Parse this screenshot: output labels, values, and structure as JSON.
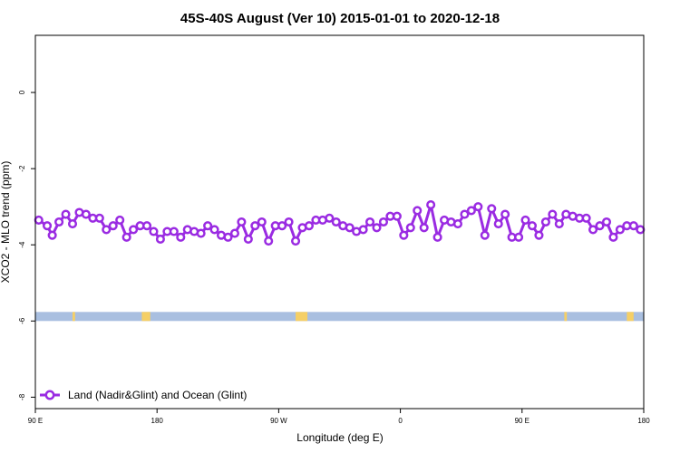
{
  "chart_data": {
    "type": "line",
    "title": "45S-40S August (Ver 10)   2015-01-01 to 2020-12-18",
    "xlabel": "Longitude (deg E)",
    "ylabel": "XCO2 - MLO trend (ppm)",
    "xlim": [
      90,
      450
    ],
    "ylim": [
      -8.3,
      1.5
    ],
    "x_ticks": [
      {
        "value": 90,
        "label": "90 E"
      },
      {
        "value": 162,
        "label": "180"
      },
      {
        "value": 234,
        "label": "90 W"
      },
      {
        "value": 306,
        "label": "0"
      },
      {
        "value": 378,
        "label": "90 E"
      },
      {
        "value": 450,
        "label": "180"
      }
    ],
    "y_ticks": [
      {
        "value": 0,
        "label": "0"
      },
      {
        "value": -2,
        "label": "-2"
      },
      {
        "value": -4,
        "label": "-4"
      },
      {
        "value": -6,
        "label": "-6"
      },
      {
        "value": -8,
        "label": "-8"
      }
    ],
    "legend": {
      "position": "bottom-left",
      "entries": [
        "Land (Nadir&Glint) and Ocean (Glint)"
      ]
    },
    "series": [
      {
        "name": "Land (Nadir&Glint) and Ocean (Glint)",
        "color": "#9a2be2",
        "x": [
          92,
          97,
          100,
          104,
          108,
          112,
          116,
          120,
          124,
          128,
          132,
          136,
          140,
          144,
          148,
          152,
          156,
          160,
          164,
          168,
          172,
          176,
          180,
          184,
          188,
          192,
          196,
          200,
          204,
          208,
          212,
          216,
          220,
          224,
          228,
          232,
          236,
          240,
          244,
          248,
          252,
          256,
          260,
          264,
          268,
          272,
          276,
          280,
          284,
          288,
          292,
          296,
          300,
          304,
          308,
          312,
          316,
          320,
          324,
          328,
          332,
          336,
          340,
          344,
          348,
          352,
          356,
          360,
          364,
          368,
          372,
          376,
          380,
          384,
          388,
          392,
          396,
          400,
          404,
          408,
          412,
          416,
          420,
          424,
          428,
          432,
          436,
          440,
          444,
          448
        ],
        "y": [
          -3.35,
          -3.5,
          -3.75,
          -3.4,
          -3.2,
          -3.45,
          -3.15,
          -3.2,
          -3.3,
          -3.3,
          -3.6,
          -3.5,
          -3.35,
          -3.8,
          -3.6,
          -3.5,
          -3.5,
          -3.65,
          -3.85,
          -3.65,
          -3.65,
          -3.8,
          -3.6,
          -3.65,
          -3.7,
          -3.5,
          -3.6,
          -3.75,
          -3.8,
          -3.7,
          -3.4,
          -3.85,
          -3.5,
          -3.4,
          -3.9,
          -3.5,
          -3.5,
          -3.4,
          -3.9,
          -3.55,
          -3.5,
          -3.35,
          -3.35,
          -3.3,
          -3.4,
          -3.5,
          -3.55,
          -3.65,
          -3.6,
          -3.4,
          -3.55,
          -3.4,
          -3.25,
          -3.25,
          -3.75,
          -3.55,
          -3.1,
          -3.55,
          -2.95,
          -3.8,
          -3.35,
          -3.4,
          -3.45,
          -3.2,
          -3.1,
          -3.0,
          -3.75,
          -3.05,
          -3.45,
          -3.2,
          -3.8,
          -3.8,
          -3.35,
          -3.5,
          -3.75,
          -3.4,
          -3.2,
          -3.45,
          -3.2,
          -3.25,
          -3.3,
          -3.3,
          -3.6,
          -3.5,
          -3.4,
          -3.8,
          -3.6,
          -3.5,
          -3.5,
          -3.6
        ]
      }
    ],
    "band": {
      "y": -6,
      "color": "#a9bfe0",
      "land_color": "#f5cf66",
      "land_x": [
        [
          112,
          113.5
        ],
        [
          153,
          158
        ],
        [
          244,
          251
        ],
        [
          403,
          404.5
        ],
        [
          440,
          444
        ]
      ]
    }
  }
}
